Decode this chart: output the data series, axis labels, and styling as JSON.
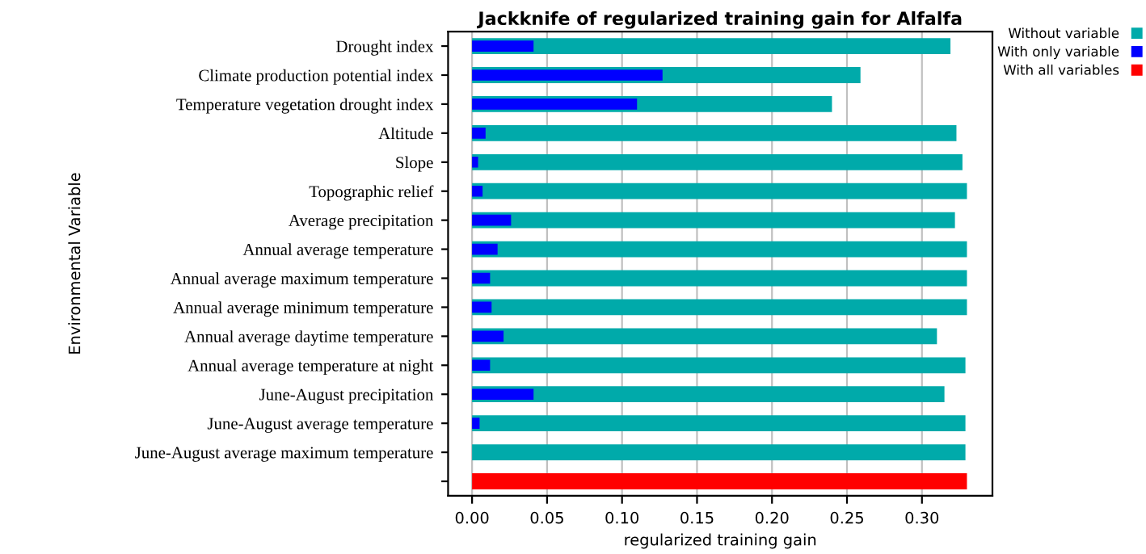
{
  "chart_data": {
    "type": "bar",
    "orientation": "horizontal",
    "title": "Jackknife of regularized training gain for Alfalfa",
    "xlabel": "regularized training gain",
    "ylabel": "Environmental Variable",
    "categories": [
      "Drought index",
      "Climate production potential index",
      "Temperature vegetation drought index",
      "Altitude",
      "Slope",
      "Topographic relief",
      "Average precipitation",
      "Annual average temperature",
      "Annual average maximum temperature",
      "Annual average minimum temperature",
      "Annual average daytime temperature",
      "Annual average temperature at night",
      "June-August precipitation",
      "June-August average temperature",
      "June-August average maximum temperature",
      null
    ],
    "series": [
      {
        "name": "Without variable",
        "color": "#00aaaa",
        "values": [
          0.319,
          0.259,
          0.24,
          0.323,
          0.327,
          0.33,
          0.322,
          0.33,
          0.33,
          0.33,
          0.31,
          0.329,
          0.315,
          0.329,
          0.329,
          null
        ]
      },
      {
        "name": "With only variable",
        "color": "#0000ff",
        "values": [
          0.041,
          0.127,
          0.11,
          0.009,
          0.004,
          0.007,
          0.026,
          0.017,
          0.012,
          0.013,
          0.021,
          0.012,
          0.041,
          0.005,
          0.0,
          null
        ]
      },
      {
        "name": "With all variables",
        "color": "#ff0000",
        "values": [
          null,
          null,
          null,
          null,
          null,
          null,
          null,
          null,
          null,
          null,
          null,
          null,
          null,
          null,
          null,
          0.33
        ]
      }
    ],
    "xlim": [
      -0.016,
      0.347
    ],
    "xticks": [
      {
        "value": 0,
        "label": "0.00"
      },
      {
        "value": 0.05,
        "label": "0.05"
      },
      {
        "value": 0.1,
        "label": "0.10"
      },
      {
        "value": 0.15,
        "label": "0.15"
      },
      {
        "value": 0.2,
        "label": "0.20"
      },
      {
        "value": 0.25,
        "label": "0.25"
      },
      {
        "value": 0.3,
        "label": "0.30"
      }
    ],
    "grid": true,
    "legend": "top right"
  }
}
